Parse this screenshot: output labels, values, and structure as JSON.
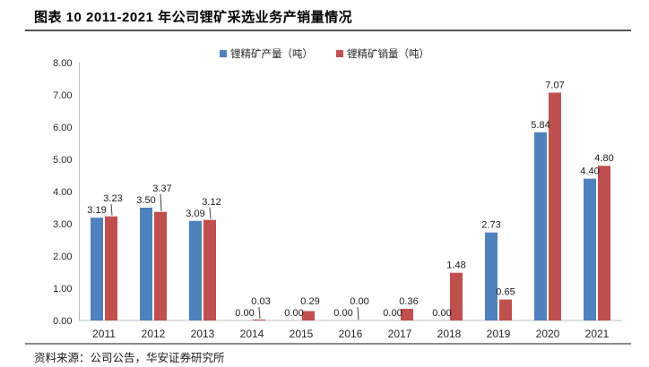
{
  "header": {
    "title": "图表 10 2011-2021 年公司锂矿采选业务产销量情况"
  },
  "footer": {
    "source": "资料来源：公司公告，华安证券研究所"
  },
  "colors": {
    "production_blue": "#4F81BD",
    "sales_red": "#C0504D",
    "axis_line": "#BFBFBF",
    "tick_text": "#262626",
    "value_label_text": "#1a1a1a"
  },
  "chart_data": {
    "type": "bar",
    "title": "图表 10 2011-2021 年公司锂矿采选业务产销量情况",
    "categories": [
      "2011",
      "2012",
      "2013",
      "2014",
      "2015",
      "2016",
      "2017",
      "2018",
      "2019",
      "2020",
      "2021"
    ],
    "series": [
      {
        "name": "锂精矿产量（吨）",
        "color": "#4F81BD",
        "values": [
          3.19,
          3.5,
          3.09,
          0.0,
          0.0,
          0.0,
          0.0,
          0.0,
          2.73,
          5.84,
          4.4
        ]
      },
      {
        "name": "锂精矿销量（吨）",
        "color": "#C0504D",
        "values": [
          3.23,
          3.37,
          3.12,
          0.03,
          0.29,
          0.0,
          0.36,
          1.48,
          0.65,
          7.07,
          4.8
        ]
      }
    ],
    "xlabel": "",
    "ylabel": "",
    "ylim": [
      0,
      8
    ],
    "ytick_step": 1,
    "ytick_labels": [
      "0.00",
      "1.00",
      "2.00",
      "3.00",
      "4.00",
      "5.00",
      "6.00",
      "7.00",
      "8.00"
    ],
    "grid": false,
    "legend_position": "top-center",
    "value_labels": true,
    "value_label_decimals": 2
  }
}
